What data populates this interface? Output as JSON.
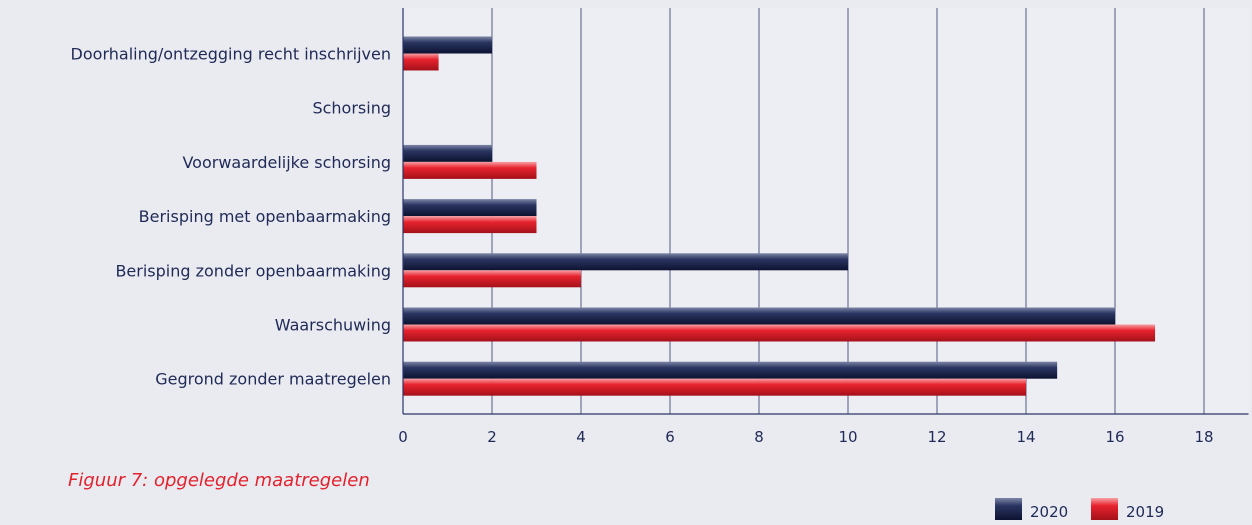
{
  "caption": "Figuur 7: opgelegde maatregelen",
  "chart_data": {
    "type": "bar",
    "orientation": "horizontal",
    "title": "",
    "xlabel": "",
    "ylabel": "",
    "categories": [
      "Doorhaling/ontzegging recht inschrijven",
      "Schorsing",
      "Voorwaardelijke schorsing",
      "Berisping met openbaarmaking",
      "Berisping zonder openbaarmaking",
      "Waarschuwing",
      "Gegrond zonder maatregelen"
    ],
    "series": [
      {
        "name": "2020",
        "color": "#1c2547",
        "values": [
          2,
          0,
          2,
          3,
          10,
          16,
          14.7
        ]
      },
      {
        "name": "2019",
        "color": "#e3222d",
        "values": [
          0.8,
          0,
          3,
          3,
          4,
          16.9,
          14
        ]
      }
    ],
    "xlim": [
      0,
      19
    ],
    "xticks": [
      0,
      2,
      4,
      6,
      8,
      10,
      12,
      14,
      16,
      18
    ],
    "grid": true,
    "legend_position": "bottom-right"
  }
}
